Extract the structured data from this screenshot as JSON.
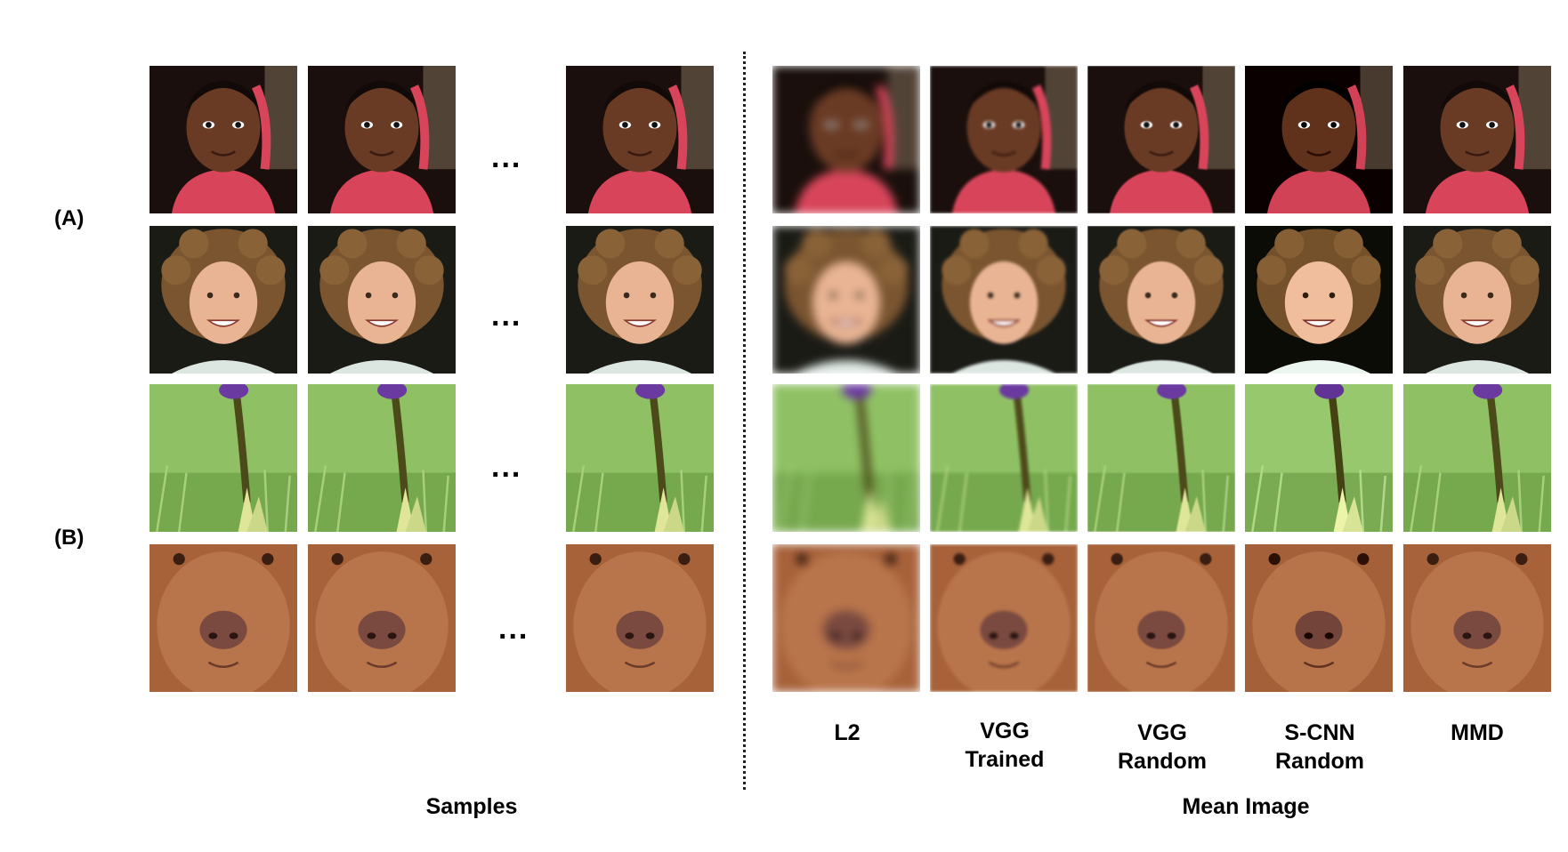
{
  "row_groups": [
    {
      "label": "(A)"
    },
    {
      "label": "(B)"
    }
  ],
  "ellipsis": "...",
  "columns": [
    {
      "label_line1": "L2",
      "label_line2": ""
    },
    {
      "label_line1": "VGG",
      "label_line2": "Trained"
    },
    {
      "label_line1": "VGG",
      "label_line2": "Random"
    },
    {
      "label_line1": "S-CNN",
      "label_line2": "Random"
    },
    {
      "label_line1": "MMD",
      "label_line2": ""
    }
  ],
  "sections": {
    "samples": "Samples",
    "mean_image": "Mean Image"
  },
  "rows": [
    {
      "subject": "girl-face"
    },
    {
      "subject": "curly-hair-face"
    },
    {
      "subject": "flower-stem"
    },
    {
      "subject": "dog-face"
    }
  ],
  "colors": {
    "background": "#ffffff",
    "divider": "#222222"
  }
}
